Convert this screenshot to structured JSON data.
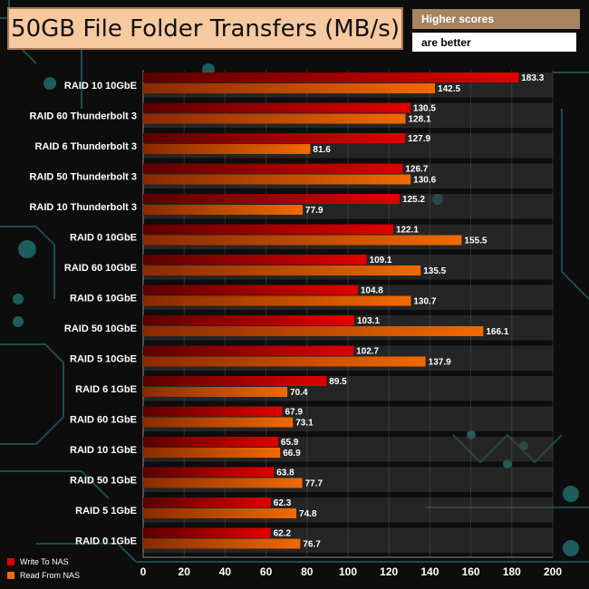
{
  "header": {
    "title": "50GB File Folder Transfers (MB/s)",
    "note_line1": "Higher scores",
    "note_line2": "are better"
  },
  "colors": {
    "write": "#e00000",
    "read": "#f06a00",
    "panel": "#f7c9a0",
    "note": "#a68460"
  },
  "chart_data": {
    "type": "bar",
    "orientation": "horizontal",
    "categories": [
      "RAID 10 10GbE",
      "RAID 60 Thunderbolt 3",
      "RAID 6 Thunderbolt 3",
      "RAID 50 Thunderbolt 3",
      "RAID 10 Thunderbolt 3",
      "RAID 0 10GbE",
      "RAID 60 10GbE",
      "RAID 6 10GbE",
      "RAID 50 10GbE",
      "RAID 5 10GbE",
      "RAID 6 1GbE",
      "RAID 60 1GbE",
      "RAID 10 1GbE",
      "RAID 50 1GbE",
      "RAID 5 1GbE",
      "RAID 0 1GbE"
    ],
    "series": [
      {
        "name": "Write To NAS",
        "values": [
          183.3,
          130.5,
          127.9,
          126.7,
          125.2,
          122.1,
          109.1,
          104.8,
          103.1,
          102.7,
          89.5,
          67.9,
          65.9,
          63.8,
          62.3,
          62.2
        ]
      },
      {
        "name": "Read From NAS",
        "values": [
          142.5,
          128.1,
          81.6,
          130.6,
          77.9,
          155.5,
          135.5,
          130.7,
          166.1,
          137.9,
          70.4,
          73.1,
          66.9,
          77.7,
          74.8,
          76.7
        ]
      }
    ],
    "xlim": [
      0,
      200
    ],
    "xticks": [
      0,
      20,
      40,
      60,
      80,
      100,
      120,
      140,
      160,
      180,
      200
    ],
    "legend_position": "bottom-left"
  }
}
